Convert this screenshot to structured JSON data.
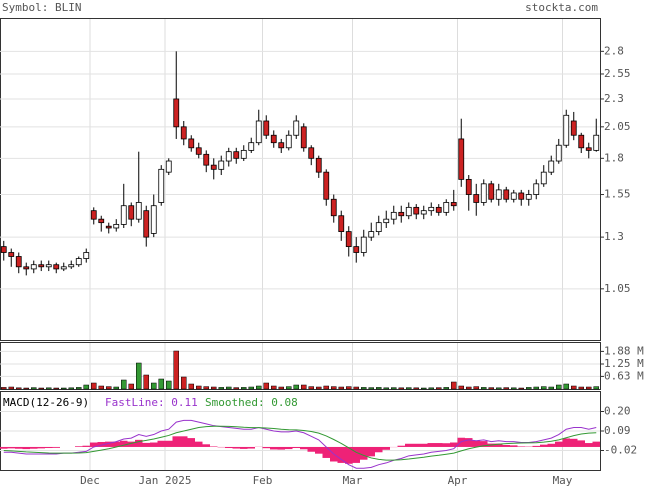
{
  "header": {
    "symbol": "Symbol: BLIN",
    "source": "stockta.com"
  },
  "chart_data": [
    {
      "type": "candlestick",
      "log_scale": true,
      "grid": true,
      "up_color": "#ffffff",
      "down_color": "#cc2222",
      "ylim": [
        0.85,
        3.2
      ],
      "yticks": [
        1.05,
        1.3,
        1.55,
        1.8,
        2.05,
        2.3,
        2.55,
        2.8
      ],
      "open": [
        1.25,
        1.22,
        1.2,
        1.15,
        1.14,
        1.16,
        1.15,
        1.16,
        1.14,
        1.15,
        1.16,
        1.19,
        1.45,
        1.4,
        1.36,
        1.35,
        1.37,
        1.48,
        1.4,
        1.45,
        1.32,
        1.5,
        1.7,
        2.3,
        2.05,
        1.95,
        1.88,
        1.83,
        1.75,
        1.72,
        1.78,
        1.85,
        1.8,
        1.86,
        1.92,
        2.1,
        1.98,
        1.92,
        1.88,
        1.98,
        2.05,
        1.88,
        1.8,
        1.7,
        1.52,
        1.42,
        1.33,
        1.25,
        1.22,
        1.3,
        1.33,
        1.38,
        1.4,
        1.44,
        1.42,
        1.47,
        1.43,
        1.45,
        1.47,
        1.44,
        1.5,
        1.95,
        1.65,
        1.55,
        1.5,
        1.62,
        1.52,
        1.58,
        1.52,
        1.56,
        1.52,
        1.55,
        1.62,
        1.7,
        1.78,
        1.9,
        2.1,
        1.98,
        1.88,
        1.86
      ],
      "high": [
        1.28,
        1.24,
        1.22,
        1.17,
        1.18,
        1.18,
        1.18,
        1.17,
        1.17,
        1.18,
        1.2,
        1.24,
        1.47,
        1.42,
        1.38,
        1.4,
        1.62,
        1.5,
        1.85,
        1.48,
        1.55,
        1.75,
        1.8,
        2.8,
        2.1,
        1.98,
        1.92,
        1.86,
        1.8,
        1.82,
        1.88,
        1.88,
        1.9,
        1.96,
        2.2,
        2.15,
        2.02,
        1.95,
        2.02,
        2.15,
        2.08,
        1.9,
        1.82,
        1.72,
        1.55,
        1.45,
        1.36,
        1.3,
        1.34,
        1.38,
        1.42,
        1.45,
        1.48,
        1.48,
        1.5,
        1.49,
        1.48,
        1.5,
        1.49,
        1.52,
        1.58,
        2.12,
        1.68,
        1.62,
        1.65,
        1.64,
        1.62,
        1.6,
        1.58,
        1.58,
        1.58,
        1.65,
        1.75,
        1.82,
        1.95,
        2.2,
        2.18,
        2.0,
        1.92,
        2.12
      ],
      "low": [
        1.18,
        1.15,
        1.12,
        1.11,
        1.12,
        1.13,
        1.13,
        1.12,
        1.13,
        1.14,
        1.15,
        1.17,
        1.37,
        1.33,
        1.32,
        1.33,
        1.35,
        1.36,
        1.38,
        1.25,
        1.3,
        1.48,
        1.68,
        1.95,
        1.9,
        1.85,
        1.8,
        1.7,
        1.65,
        1.68,
        1.74,
        1.76,
        1.78,
        1.84,
        1.9,
        1.95,
        1.88,
        1.84,
        1.86,
        1.95,
        1.85,
        1.75,
        1.66,
        1.48,
        1.38,
        1.28,
        1.2,
        1.17,
        1.2,
        1.28,
        1.31,
        1.35,
        1.37,
        1.38,
        1.4,
        1.4,
        1.4,
        1.42,
        1.42,
        1.42,
        1.45,
        1.6,
        1.45,
        1.42,
        1.48,
        1.5,
        1.48,
        1.5,
        1.5,
        1.48,
        1.48,
        1.52,
        1.6,
        1.68,
        1.76,
        1.88,
        1.94,
        1.84,
        1.8,
        1.85
      ],
      "close": [
        1.22,
        1.2,
        1.15,
        1.14,
        1.16,
        1.15,
        1.16,
        1.14,
        1.15,
        1.16,
        1.19,
        1.22,
        1.4,
        1.38,
        1.35,
        1.37,
        1.48,
        1.4,
        1.5,
        1.3,
        1.48,
        1.72,
        1.78,
        2.05,
        1.95,
        1.88,
        1.83,
        1.75,
        1.72,
        1.78,
        1.85,
        1.8,
        1.86,
        1.92,
        2.1,
        1.98,
        1.92,
        1.88,
        1.98,
        2.1,
        1.88,
        1.8,
        1.7,
        1.52,
        1.42,
        1.33,
        1.25,
        1.22,
        1.3,
        1.33,
        1.38,
        1.4,
        1.44,
        1.42,
        1.47,
        1.43,
        1.45,
        1.47,
        1.44,
        1.5,
        1.48,
        1.65,
        1.55,
        1.5,
        1.62,
        1.52,
        1.58,
        1.52,
        1.56,
        1.52,
        1.55,
        1.62,
        1.7,
        1.78,
        1.9,
        2.15,
        1.98,
        1.88,
        1.86,
        1.98
      ]
    },
    {
      "type": "bar",
      "up_color": "#339933",
      "down_color": "#cc2222",
      "ylim": [
        0,
        2.3
      ],
      "yticks": [
        {
          "value": 0.63,
          "label": "0.63 M"
        },
        {
          "value": 1.25,
          "label": "1.25 M"
        },
        {
          "value": 1.88,
          "label": "1.88 M"
        }
      ],
      "values": [
        0.08,
        0.1,
        0.06,
        0.05,
        0.07,
        0.05,
        0.06,
        0.05,
        0.05,
        0.06,
        0.08,
        0.2,
        0.3,
        0.15,
        0.12,
        0.1,
        0.45,
        0.25,
        1.3,
        0.7,
        0.3,
        0.5,
        0.4,
        1.9,
        0.6,
        0.25,
        0.15,
        0.12,
        0.1,
        0.08,
        0.1,
        0.07,
        0.08,
        0.1,
        0.15,
        0.3,
        0.15,
        0.1,
        0.12,
        0.2,
        0.2,
        0.12,
        0.1,
        0.15,
        0.12,
        0.1,
        0.12,
        0.1,
        0.08,
        0.07,
        0.08,
        0.06,
        0.07,
        0.06,
        0.07,
        0.06,
        0.05,
        0.06,
        0.07,
        0.08,
        0.35,
        0.15,
        0.1,
        0.12,
        0.08,
        0.07,
        0.06,
        0.07,
        0.06,
        0.05,
        0.08,
        0.1,
        0.12,
        0.1,
        0.2,
        0.25,
        0.15,
        0.1,
        0.1,
        0.12
      ]
    },
    {
      "type": "macd",
      "title": "MACD(12-26-9)",
      "ylim": [
        -0.13,
        0.31
      ],
      "yticks": [
        -0.02,
        0.09,
        {
          "value": 0.2,
          "label": "0.20"
        }
      ],
      "categories": [
        null,
        null,
        null,
        null,
        null,
        null,
        null,
        null,
        null,
        null,
        null,
        null,
        "Dec",
        null,
        null,
        null,
        null,
        null,
        null,
        null,
        null,
        null,
        "Jan 2025",
        null,
        null,
        null,
        null,
        null,
        null,
        null,
        null,
        null,
        null,
        null,
        null,
        "Feb",
        null,
        null,
        null,
        null,
        null,
        null,
        null,
        null,
        null,
        null,
        null,
        "Mar",
        null,
        null,
        null,
        null,
        null,
        null,
        null,
        null,
        null,
        null,
        null,
        null,
        null,
        "Apr",
        null,
        null,
        null,
        null,
        null,
        null,
        null,
        null,
        null,
        null,
        null,
        null,
        null,
        "May",
        null,
        null,
        null,
        null
      ],
      "histogram": {
        "color": "#ee2277",
        "values": [
          -0.01,
          -0.008,
          -0.01,
          -0.012,
          -0.01,
          -0.008,
          -0.006,
          -0.005,
          0.0,
          0.0,
          0.004,
          0.007,
          0.025,
          0.028,
          0.03,
          0.03,
          0.035,
          0.03,
          0.04,
          0.023,
          0.025,
          0.035,
          0.035,
          0.06,
          0.06,
          0.05,
          0.03,
          0.015,
          0.003,
          -0.002,
          -0.006,
          -0.009,
          -0.011,
          -0.009,
          0.001,
          -0.007,
          -0.014,
          -0.015,
          -0.012,
          -0.006,
          -0.013,
          -0.027,
          -0.038,
          -0.062,
          -0.082,
          -0.09,
          -0.095,
          -0.09,
          -0.072,
          -0.053,
          -0.03,
          -0.016,
          -0.001,
          0.007,
          0.018,
          0.018,
          0.018,
          0.022,
          0.022,
          0.021,
          0.025,
          0.052,
          0.05,
          0.036,
          0.033,
          0.019,
          0.019,
          0.011,
          0.009,
          0.003,
          0.002,
          0.006,
          0.013,
          0.018,
          0.03,
          0.048,
          0.046,
          0.037,
          0.022,
          0.03
        ]
      },
      "series": [
        {
          "name": "FastLine: 0.11",
          "color": "#9933cc",
          "values": [
            -0.03,
            -0.03,
            -0.035,
            -0.04,
            -0.04,
            -0.04,
            -0.04,
            -0.04,
            -0.035,
            -0.035,
            -0.03,
            -0.025,
            0.0,
            0.01,
            0.02,
            0.03,
            0.045,
            0.05,
            0.07,
            0.06,
            0.07,
            0.09,
            0.1,
            0.14,
            0.15,
            0.15,
            0.14,
            0.13,
            0.12,
            0.115,
            0.11,
            0.105,
            0.1,
            0.1,
            0.11,
            0.1,
            0.09,
            0.085,
            0.085,
            0.09,
            0.08,
            0.06,
            0.04,
            0.0,
            -0.04,
            -0.07,
            -0.1,
            -0.12,
            -0.12,
            -0.115,
            -0.1,
            -0.09,
            -0.075,
            -0.065,
            -0.05,
            -0.045,
            -0.04,
            -0.03,
            -0.025,
            -0.02,
            -0.01,
            0.03,
            0.04,
            0.035,
            0.04,
            0.03,
            0.035,
            0.03,
            0.03,
            0.025,
            0.025,
            0.03,
            0.04,
            0.05,
            0.07,
            0.1,
            0.11,
            0.11,
            0.1,
            0.11
          ]
        },
        {
          "name": "Smoothed: 0.08",
          "color": "#339933",
          "values": [
            -0.02,
            -0.022,
            -0.025,
            -0.028,
            -0.03,
            -0.032,
            -0.034,
            -0.035,
            -0.035,
            -0.035,
            -0.034,
            -0.032,
            -0.025,
            -0.018,
            -0.01,
            0.0,
            0.01,
            0.02,
            0.03,
            0.037,
            0.045,
            0.055,
            0.065,
            0.08,
            0.09,
            0.1,
            0.11,
            0.115,
            0.117,
            0.117,
            0.116,
            0.114,
            0.111,
            0.109,
            0.109,
            0.107,
            0.104,
            0.1,
            0.097,
            0.096,
            0.093,
            0.087,
            0.078,
            0.062,
            0.042,
            0.02,
            -0.005,
            -0.03,
            -0.048,
            -0.062,
            -0.07,
            -0.074,
            -0.074,
            -0.072,
            -0.068,
            -0.063,
            -0.058,
            -0.052,
            -0.047,
            -0.041,
            -0.035,
            -0.022,
            -0.01,
            -0.001,
            0.007,
            0.011,
            0.016,
            0.019,
            0.021,
            0.022,
            0.023,
            0.024,
            0.027,
            0.032,
            0.04,
            0.052,
            0.064,
            0.073,
            0.078,
            0.08
          ]
        }
      ]
    }
  ]
}
